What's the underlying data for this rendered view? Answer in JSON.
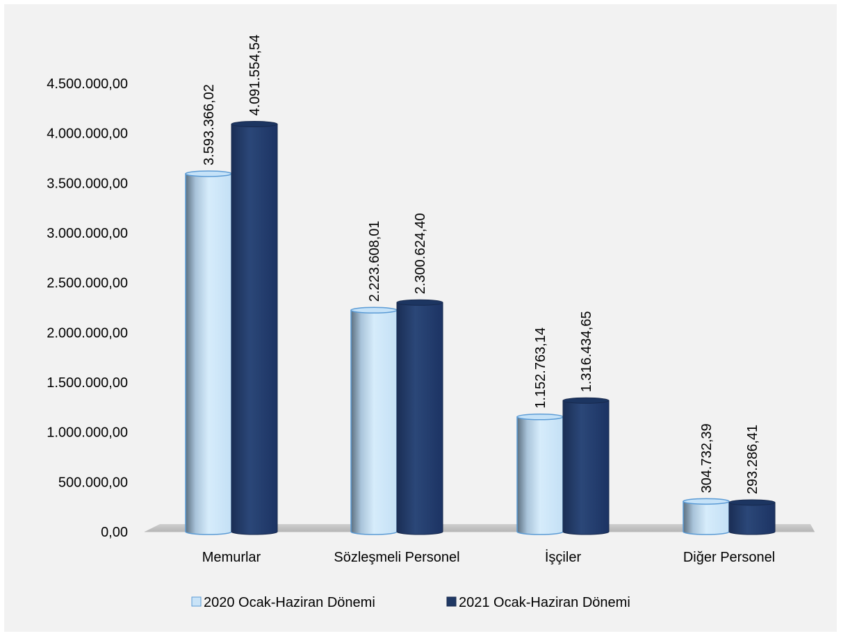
{
  "chart_data": {
    "type": "bar",
    "categories": [
      "Memurlar",
      "Sözleşmeli Personel",
      "İşçiler",
      "Diğer Personel"
    ],
    "series": [
      {
        "name": "2020 Ocak-Haziran Dönemi",
        "values": [
          3593366.02,
          2223608.01,
          1152763.14,
          304732.39
        ],
        "labels": [
          "3.593.366,02",
          "2.223.608,01",
          "1.152.763,14",
          "304.732,39"
        ],
        "color": "#c9e3f7"
      },
      {
        "name": "2021 Ocak-Haziran Dönemi",
        "values": [
          4091554.54,
          2300624.4,
          1316434.65,
          293286.41
        ],
        "labels": [
          "4.091.554,54",
          "2.300.624,40",
          "1.316.434,65",
          "293.286,41"
        ],
        "color": "#1f3864"
      }
    ],
    "ylim": [
      0,
      4500000
    ],
    "yticks": [
      0,
      500000,
      1000000,
      1500000,
      2000000,
      2500000,
      3000000,
      3500000,
      4000000,
      4500000
    ],
    "ytick_labels": [
      "0,00",
      "500.000,00",
      "1.000.000,00",
      "1.500.000,00",
      "2.000.000,00",
      "2.500.000,00",
      "3.000.000,00",
      "3.500.000,00",
      "4.000.000,00",
      "4.500.000,00"
    ],
    "grid": false,
    "legend_position": "bottom",
    "title": "",
    "xlabel": "",
    "ylabel": ""
  }
}
